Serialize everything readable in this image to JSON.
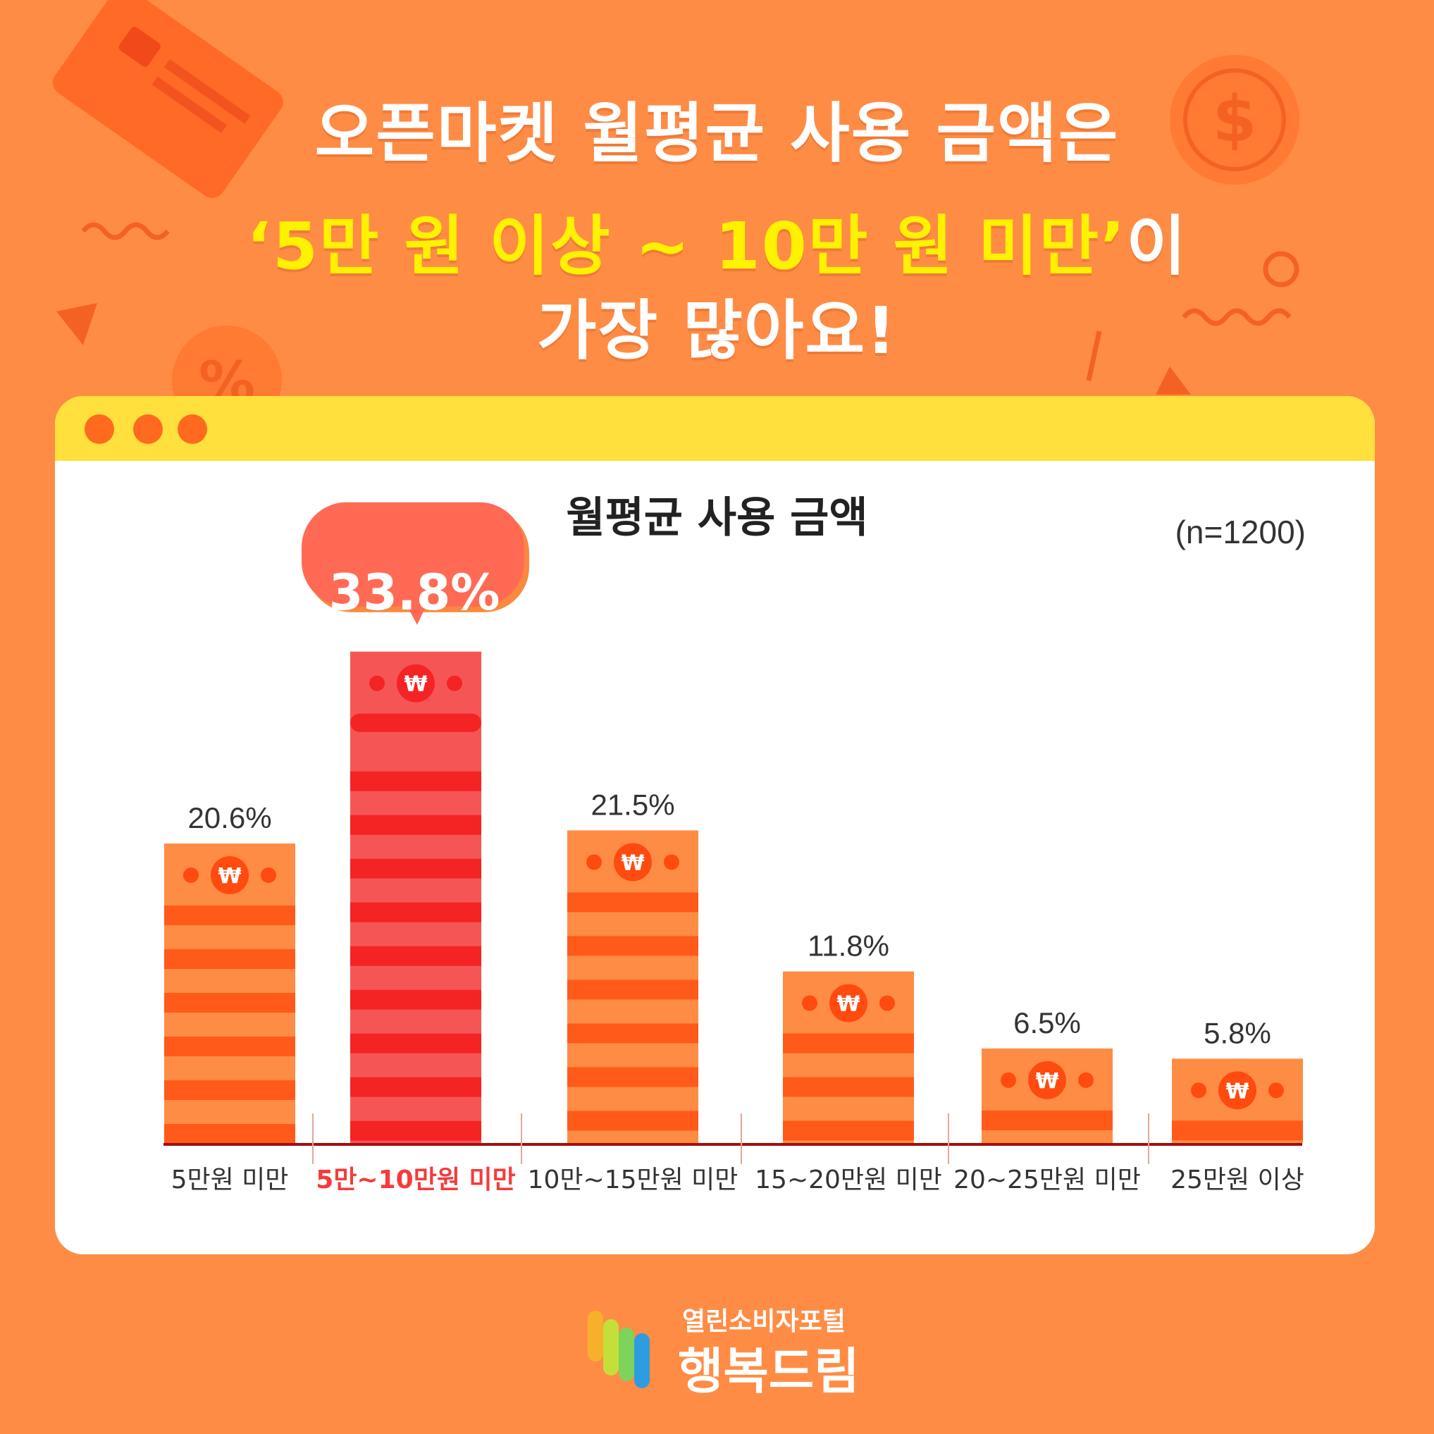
{
  "headline": {
    "line1": "오픈마켓 월평균 사용 금액은",
    "line2_highlight": "‘5만 원 이상 ~ 10만 원 미만’",
    "line2_suffix": "이",
    "line3": "가장 많아요!"
  },
  "colors": {
    "background": "#FF8C45",
    "highlight_text": "#FFF200",
    "bar": "#FF8C45",
    "bar_stripe": "#FF5A1A",
    "highlight_bar": "#F65556",
    "highlight_stripe": "#F42424",
    "highlight_label": "#F53B3B",
    "axis": "#A01010"
  },
  "chart_data": {
    "type": "bar",
    "title": "월평균 사용 금액",
    "note": "(n=1200)",
    "categories": [
      "5만원 미만",
      "5만~10만원 미만",
      "10만~15만원 미만",
      "15~20만원 미만",
      "20~25만원 미만",
      "25만원 이상"
    ],
    "values": [
      20.6,
      33.8,
      21.5,
      11.8,
      6.5,
      5.8
    ],
    "value_labels": [
      "20.6%",
      "33.8%",
      "21.5%",
      "11.8%",
      "6.5%",
      "5.8%"
    ],
    "highlight_index": 1,
    "unit": "%",
    "ylim": [
      0,
      35
    ],
    "grid": false,
    "legend": "none"
  },
  "logo": {
    "sub": "열린소비자포털",
    "main": "행복드림"
  },
  "icons": [
    "credit-card-icon",
    "dollar-coin-icon",
    "percent-coin-icon",
    "won-coin-icon"
  ]
}
